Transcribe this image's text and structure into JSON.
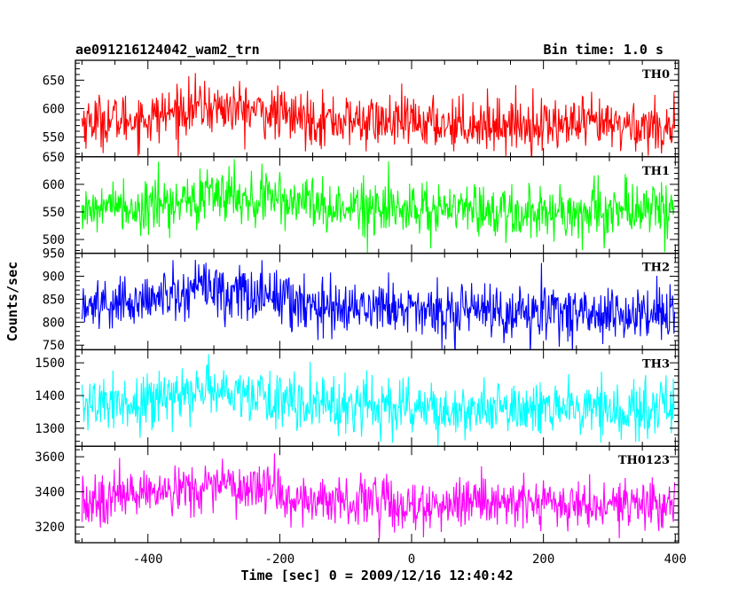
{
  "header": {
    "left_title": "ae091216124042_wam2_trn",
    "right_title": "Bin time: 1.0 s"
  },
  "chart_data": {
    "type": "line",
    "xlabel": "Time [sec] 0 = 2009/12/16 12:40:42",
    "ylabel": "Counts/sec",
    "xlim": [
      -510,
      405
    ],
    "xticks": [
      -400,
      -200,
      0,
      200,
      400
    ],
    "x_range": [
      -500,
      399
    ],
    "bin_time_s": 1.0,
    "grid": false,
    "panels": [
      {
        "name": "TH0",
        "color": "#ff0000",
        "ylim": [
          515,
          685
        ],
        "yticks": [
          550,
          600,
          650
        ],
        "noise": 23,
        "profile": [
          [
            -500,
            578
          ],
          [
            -400,
            582
          ],
          [
            -330,
            603
          ],
          [
            -250,
            598
          ],
          [
            -180,
            585
          ],
          [
            -100,
            578
          ],
          [
            0,
            575
          ],
          [
            100,
            573
          ],
          [
            200,
            572
          ],
          [
            300,
            570
          ],
          [
            399,
            568
          ]
        ]
      },
      {
        "name": "TH1",
        "color": "#00ff00",
        "ylim": [
          475,
          650
        ],
        "yticks": [
          500,
          550,
          600,
          650
        ],
        "noise": 25,
        "profile": [
          [
            -500,
            555
          ],
          [
            -400,
            562
          ],
          [
            -300,
            580
          ],
          [
            -200,
            568
          ],
          [
            -100,
            558
          ],
          [
            0,
            555
          ],
          [
            100,
            552
          ],
          [
            200,
            550
          ],
          [
            300,
            553
          ],
          [
            399,
            555
          ]
        ]
      },
      {
        "name": "TH2",
        "color": "#0000ff",
        "ylim": [
          740,
          950
        ],
        "yticks": [
          750,
          800,
          850,
          900,
          950
        ],
        "noise": 30,
        "profile": [
          [
            -500,
            835
          ],
          [
            -400,
            845
          ],
          [
            -320,
            878
          ],
          [
            -250,
            862
          ],
          [
            -150,
            840
          ],
          [
            0,
            830
          ],
          [
            100,
            825
          ],
          [
            200,
            822
          ],
          [
            300,
            820
          ],
          [
            399,
            818
          ]
        ]
      },
      {
        "name": "TH3",
        "color": "#00ffff",
        "ylim": [
          1245,
          1540
        ],
        "yticks": [
          1300,
          1400,
          1500
        ],
        "noise": 42,
        "profile": [
          [
            -500,
            1370
          ],
          [
            -400,
            1380
          ],
          [
            -300,
            1418
          ],
          [
            -200,
            1390
          ],
          [
            -100,
            1370
          ],
          [
            0,
            1365
          ],
          [
            100,
            1360
          ],
          [
            200,
            1358
          ],
          [
            300,
            1355
          ],
          [
            399,
            1355
          ]
        ]
      },
      {
        "name": "TH0123",
        "color": "#ff00ff",
        "ylim": [
          3110,
          3660
        ],
        "yticks": [
          3200,
          3400,
          3600
        ],
        "noise": 70,
        "profile": [
          [
            -500,
            3350
          ],
          [
            -400,
            3365
          ],
          [
            -300,
            3450
          ],
          [
            -220,
            3440
          ],
          [
            -180,
            3355
          ],
          [
            -100,
            3345
          ],
          [
            0,
            3335
          ],
          [
            100,
            3330
          ],
          [
            200,
            3325
          ],
          [
            300,
            3322
          ],
          [
            399,
            3320
          ]
        ]
      }
    ]
  }
}
